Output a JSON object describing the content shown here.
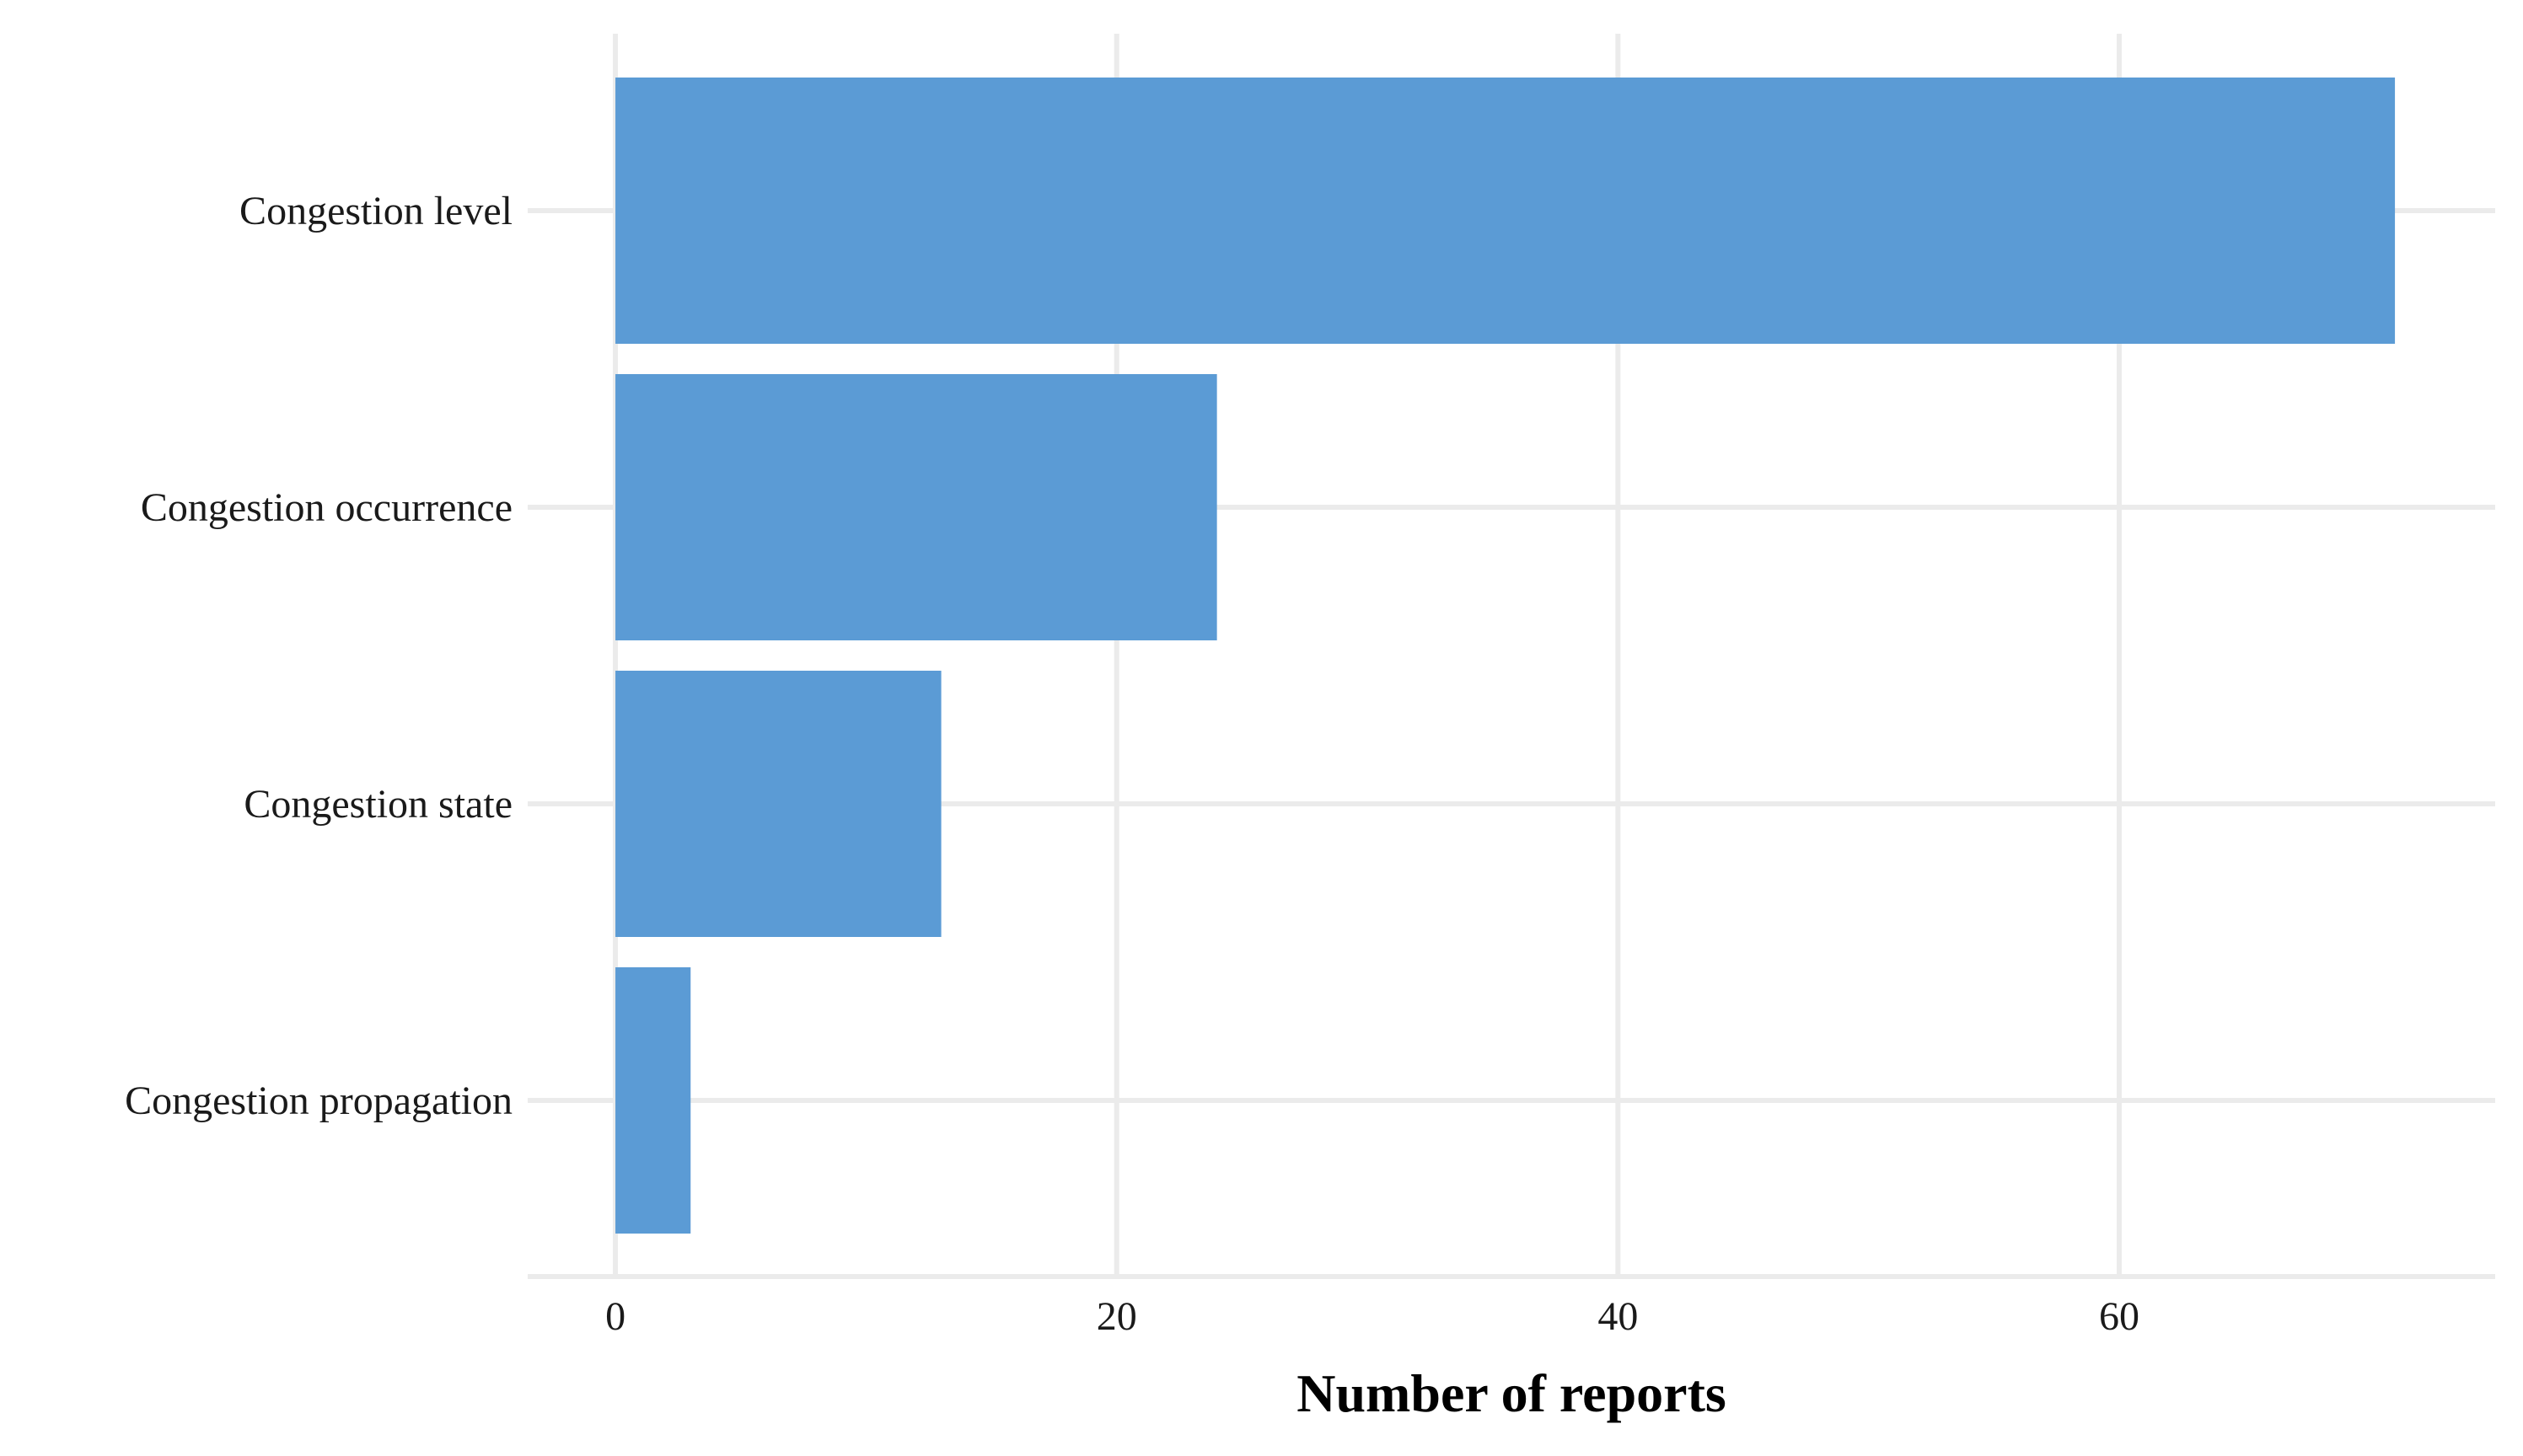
{
  "chart_data": {
    "type": "bar",
    "orientation": "horizontal",
    "categories": [
      "Congestion level",
      "Congestion occurrence",
      "Congestion state",
      "Congestion propagation"
    ],
    "values": [
      71,
      24,
      13,
      3
    ],
    "xlabel": "Number of reports",
    "ylabel": "",
    "xlim": [
      -3.5,
      75
    ],
    "xticks": [
      0,
      20,
      40,
      60
    ],
    "xtick_labels": [
      "0",
      "20",
      "40",
      "60"
    ],
    "grid": true,
    "bar_color": "#5b9bd5",
    "grid_color": "#ebebeb"
  }
}
